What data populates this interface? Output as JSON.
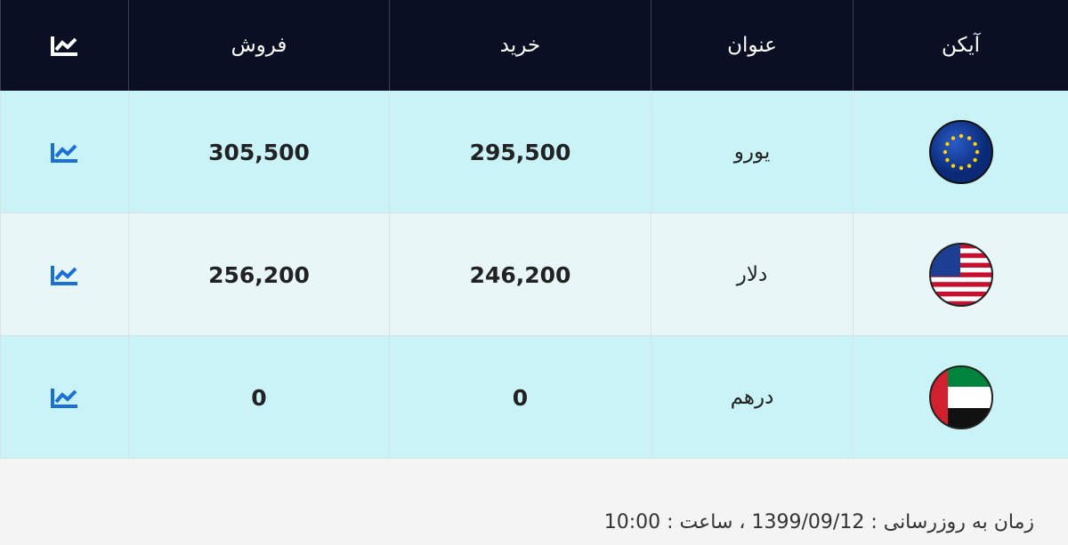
{
  "header": {
    "columns": [
      "آیکن",
      "عنوان",
      "خرید",
      "فروش"
    ]
  },
  "rows": [
    {
      "title": "یورو",
      "buy": "295,500",
      "sell": "305,500"
    },
    {
      "title": "دلار",
      "buy": "246,200",
      "sell": "256,200"
    },
    {
      "title": "درهم",
      "buy": "0",
      "sell": "0"
    }
  ],
  "footer": {
    "updated": "زمان به روزرسانی : 1399/09/12 ، ساعت : 10:00"
  }
}
